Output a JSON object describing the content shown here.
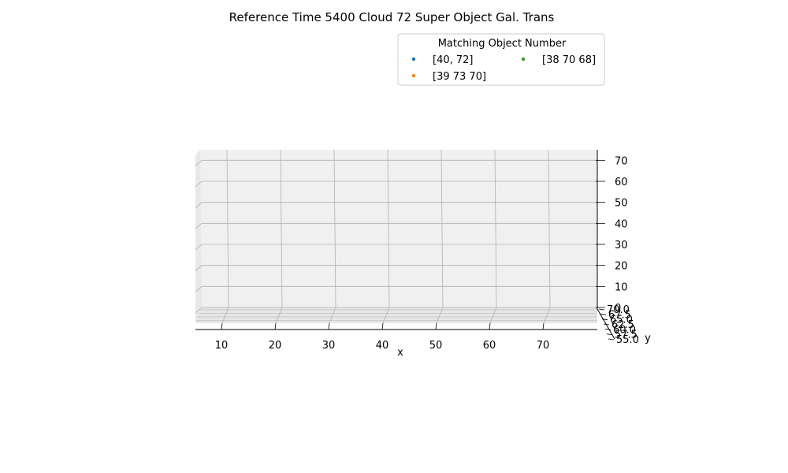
{
  "chart_data": {
    "type": "scatter",
    "projection": "3d",
    "title": "Reference Time 5400 Cloud 72 Super Object Gal. Trans",
    "xlabel": "x",
    "ylabel": "y",
    "zlabel": "",
    "x_ticks": [
      "10",
      "20",
      "30",
      "40",
      "50",
      "60",
      "70"
    ],
    "y_ticks": [
      "70.0",
      "67.5",
      "65.0",
      "62.5",
      "60.0",
      "57.5",
      "55.0"
    ],
    "z_ticks": [
      "0",
      "10",
      "20",
      "30",
      "40",
      "50",
      "60",
      "70"
    ],
    "xlim": [
      5,
      80
    ],
    "ylim": [
      55,
      70
    ],
    "zlim": [
      0,
      75
    ],
    "grid": true,
    "legend": {
      "title": "Matching Object Number",
      "placement": "upper-right",
      "columns": 2
    },
    "series": [
      {
        "name": "[40, 72]",
        "color": "#1f77b4",
        "points": []
      },
      {
        "name": "[39 73 70]",
        "color": "#ff7f0e",
        "points": []
      },
      {
        "name": "[38 70 68]",
        "color": "#2ca02c",
        "points": []
      }
    ]
  }
}
